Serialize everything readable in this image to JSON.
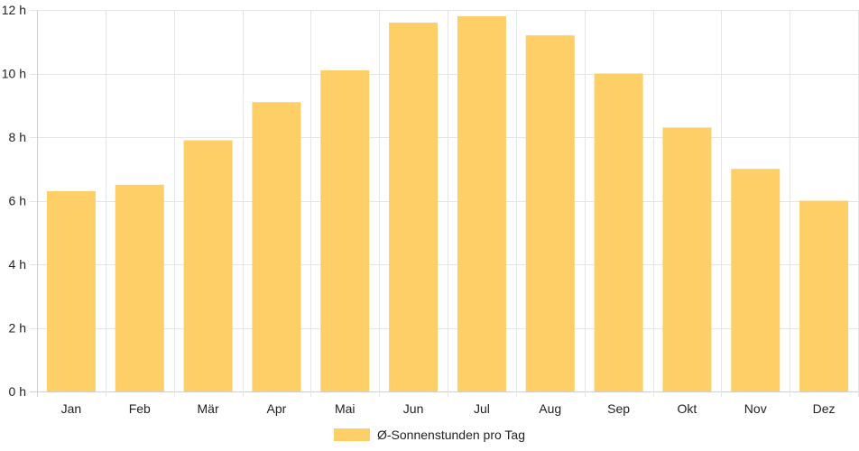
{
  "chart_data": {
    "type": "bar",
    "categories": [
      "Jan",
      "Feb",
      "Mär",
      "Apr",
      "Mai",
      "Jun",
      "Jul",
      "Aug",
      "Sep",
      "Okt",
      "Nov",
      "Dez"
    ],
    "series": [
      {
        "name": "Ø-Sonnenstunden pro Tag",
        "values": [
          6.3,
          6.5,
          7.9,
          9.1,
          10.1,
          11.6,
          11.8,
          11.2,
          10.0,
          8.3,
          7.0,
          6.0
        ]
      }
    ],
    "ylim": [
      0,
      12
    ],
    "yticks": [
      0,
      2,
      4,
      6,
      8,
      10,
      12
    ],
    "ytick_suffix": " h",
    "grid": true,
    "legend_position": "bottom",
    "bar_color": "#fecf66"
  }
}
